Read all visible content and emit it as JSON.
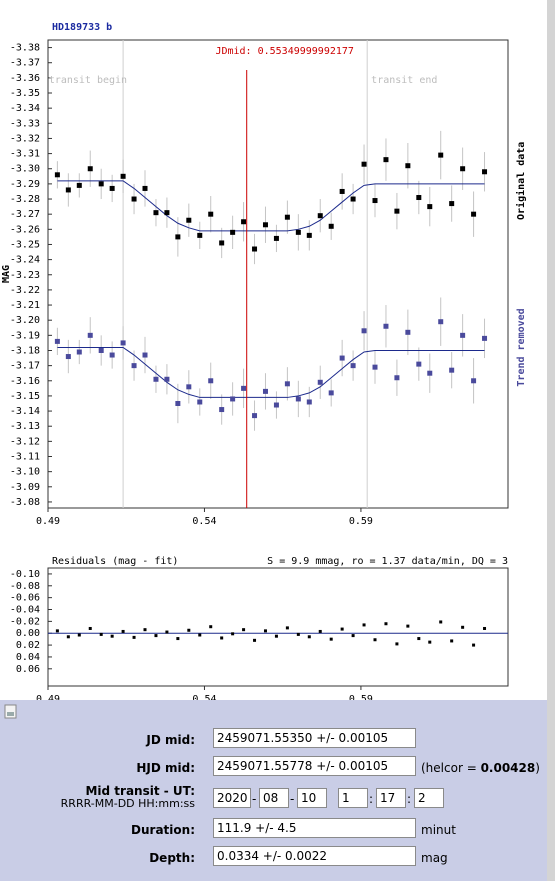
{
  "chart_data": [
    {
      "type": "scatter",
      "title": "HD189733 b",
      "ylabel": "MAG",
      "xlim": [
        0.49,
        0.637
      ],
      "ylim": [
        -3.385,
        -3.076
      ],
      "xticks": [
        0.49,
        0.54,
        0.59
      ],
      "yticks": [
        -3.38,
        -3.37,
        -3.36,
        -3.35,
        -3.34,
        -3.33,
        -3.32,
        -3.31,
        {
          "value": -3.3,
          "label": "-3.30"
        },
        -3.29,
        -3.28,
        -3.27,
        -3.26,
        -3.25,
        -3.24,
        -3.23,
        -3.22,
        -3.21,
        {
          "value": -3.2,
          "label": "-3.20"
        },
        -3.19,
        -3.18,
        -3.17,
        -3.16,
        -3.15,
        -3.14,
        -3.13,
        -3.12,
        -3.11,
        {
          "value": -3.1,
          "label": "-3.10"
        },
        -3.09,
        -3.08
      ],
      "transit_begin": {
        "label": "transit begin",
        "x": 0.514
      },
      "transit_end": {
        "label": "transit end",
        "x": 0.592
      },
      "jd_mid": {
        "label": "JDmid: 0.55349999992177",
        "x": 0.55349999992177,
        "color": "#cc0000"
      },
      "x": [
        0.493,
        0.4965,
        0.5,
        0.5035,
        0.507,
        0.5105,
        0.514,
        0.5175,
        0.521,
        0.5245,
        0.528,
        0.5315,
        0.535,
        0.5385,
        0.542,
        0.5455,
        0.549,
        0.5525,
        0.556,
        0.5595,
        0.563,
        0.5665,
        0.57,
        0.5735,
        0.577,
        0.5805,
        0.584,
        0.5875,
        0.591,
        0.5945,
        0.598,
        0.6015,
        0.605,
        0.6085,
        0.612,
        0.6155,
        0.619,
        0.6225,
        0.626,
        0.6295
      ],
      "fit_color": "#1c2a8c",
      "series": [
        {
          "name": "Original data",
          "color": "#000000",
          "values": [
            -3.296,
            -3.286,
            -3.289,
            -3.3,
            -3.29,
            -3.287,
            -3.295,
            -3.28,
            -3.287,
            -3.271,
            -3.271,
            -3.255,
            -3.266,
            -3.256,
            -3.27,
            -3.251,
            -3.258,
            -3.265,
            -3.247,
            -3.263,
            -3.254,
            -3.268,
            -3.258,
            -3.256,
            -3.269,
            -3.262,
            -3.285,
            -3.28,
            -3.303,
            -3.279,
            -3.306,
            -3.272,
            -3.302,
            -3.281,
            -3.275,
            -3.309,
            -3.277,
            -3.3,
            -3.27,
            -3.298
          ],
          "errors": [
            0.009,
            0.011,
            0.008,
            0.012,
            0.01,
            0.009,
            0.011,
            0.01,
            0.012,
            0.009,
            0.01,
            0.013,
            0.011,
            0.009,
            0.012,
            0.01,
            0.011,
            0.013,
            0.01,
            0.012,
            0.009,
            0.011,
            0.012,
            0.01,
            0.011,
            0.009,
            0.012,
            0.01,
            0.013,
            0.011,
            0.014,
            0.012,
            0.015,
            0.011,
            0.013,
            0.016,
            0.012,
            0.014,
            0.015,
            0.013
          ],
          "fit": [
            -3.292,
            -3.292,
            -3.292,
            -3.292,
            -3.292,
            -3.292,
            -3.292,
            -3.287,
            -3.281,
            -3.275,
            -3.269,
            -3.264,
            -3.261,
            -3.259,
            -3.259,
            -3.259,
            -3.259,
            -3.259,
            -3.259,
            -3.259,
            -3.259,
            -3.259,
            -3.26,
            -3.262,
            -3.266,
            -3.272,
            -3.278,
            -3.284,
            -3.289,
            -3.29,
            -3.29,
            -3.29,
            -3.29,
            -3.29,
            -3.29,
            -3.29,
            -3.29,
            -3.29,
            -3.29,
            -3.29
          ]
        },
        {
          "name": "Trend removed",
          "color": "#4a4a9c",
          "values": [
            -3.186,
            -3.176,
            -3.179,
            -3.19,
            -3.18,
            -3.177,
            -3.185,
            -3.17,
            -3.177,
            -3.161,
            -3.161,
            -3.145,
            -3.156,
            -3.146,
            -3.16,
            -3.141,
            -3.148,
            -3.155,
            -3.137,
            -3.153,
            -3.144,
            -3.158,
            -3.148,
            -3.146,
            -3.159,
            -3.152,
            -3.175,
            -3.17,
            -3.193,
            -3.169,
            -3.196,
            -3.162,
            -3.192,
            -3.171,
            -3.165,
            -3.199,
            -3.167,
            -3.19,
            -3.16,
            -3.188
          ],
          "errors": [
            0.009,
            0.011,
            0.008,
            0.012,
            0.01,
            0.009,
            0.011,
            0.01,
            0.012,
            0.009,
            0.01,
            0.013,
            0.011,
            0.009,
            0.012,
            0.01,
            0.011,
            0.013,
            0.01,
            0.012,
            0.009,
            0.011,
            0.012,
            0.01,
            0.011,
            0.009,
            0.012,
            0.01,
            0.013,
            0.011,
            0.014,
            0.012,
            0.015,
            0.011,
            0.013,
            0.016,
            0.012,
            0.014,
            0.015,
            0.013
          ],
          "fit": [
            -3.182,
            -3.182,
            -3.182,
            -3.182,
            -3.182,
            -3.182,
            -3.182,
            -3.177,
            -3.171,
            -3.165,
            -3.159,
            -3.154,
            -3.151,
            -3.149,
            -3.149,
            -3.149,
            -3.149,
            -3.149,
            -3.149,
            -3.149,
            -3.149,
            -3.149,
            -3.15,
            -3.152,
            -3.156,
            -3.162,
            -3.168,
            -3.174,
            -3.179,
            -3.18,
            -3.18,
            -3.18,
            -3.18,
            -3.18,
            -3.18,
            -3.18,
            -3.18,
            -3.18,
            -3.18,
            -3.18
          ]
        }
      ]
    },
    {
      "type": "scatter",
      "title": "Residuals (mag - fit)",
      "subtitle": "S = 9.9 mmag, ro = 1.37 data/min, DQ = 3",
      "xlim": [
        0.49,
        0.637
      ],
      "ylim": [
        -0.11,
        0.089
      ],
      "xticks": [
        0.49,
        0.54,
        0.59
      ],
      "yticks": [
        {
          "value": -0.1,
          "label": "-0.10"
        },
        -0.08,
        -0.06,
        -0.04,
        -0.02,
        {
          "value": 0,
          "label": "0.00"
        },
        0.02,
        0.04,
        0.06
      ],
      "hline": 0,
      "hline_color": "#1c2a8c",
      "x": [
        0.493,
        0.4965,
        0.5,
        0.5035,
        0.507,
        0.5105,
        0.514,
        0.5175,
        0.521,
        0.5245,
        0.528,
        0.5315,
        0.535,
        0.5385,
        0.542,
        0.5455,
        0.549,
        0.5525,
        0.556,
        0.5595,
        0.563,
        0.5665,
        0.57,
        0.5735,
        0.577,
        0.5805,
        0.584,
        0.5875,
        0.591,
        0.5945,
        0.598,
        0.6015,
        0.605,
        0.6085,
        0.612,
        0.6155,
        0.619,
        0.6225,
        0.626,
        0.6295
      ],
      "series": [
        {
          "color": "#000000",
          "values": [
            -0.004,
            0.006,
            0.003,
            -0.008,
            0.002,
            0.005,
            -0.003,
            0.007,
            -0.006,
            0.004,
            -0.002,
            0.009,
            -0.005,
            0.003,
            -0.011,
            0.008,
            0.001,
            -0.006,
            0.012,
            -0.004,
            0.005,
            -0.009,
            0.002,
            0.006,
            -0.003,
            0.01,
            -0.007,
            0.004,
            -0.014,
            0.011,
            -0.016,
            0.018,
            -0.012,
            0.009,
            0.015,
            -0.019,
            0.013,
            -0.01,
            0.02,
            -0.008
          ]
        }
      ]
    }
  ],
  "form": {
    "jd_mid": {
      "label": "JD mid:",
      "value": "2459071.55350 +/- 0.00105"
    },
    "hjd_mid": {
      "label": "HJD mid:",
      "value": "2459071.55778 +/- 0.00105",
      "helcor_prefix": "(helcor = ",
      "helcor": "0.00428",
      "helcor_suffix": ")"
    },
    "mid_transit": {
      "label": "Mid transit - UT:",
      "format": "RRRR-MM-DD HH:mm:ss",
      "date": [
        "2020",
        "08",
        "10"
      ],
      "date_separators": [
        "-",
        "-"
      ],
      "time": [
        "1",
        "17",
        "2"
      ],
      "time_separators": [
        ":",
        ":"
      ]
    },
    "duration": {
      "label": "Duration:",
      "value": "111.9 +/- 4.5",
      "unit": "minut"
    },
    "depth": {
      "label": "Depth:",
      "value": "0.0334 +/- 0.0022",
      "unit": "mag"
    }
  }
}
